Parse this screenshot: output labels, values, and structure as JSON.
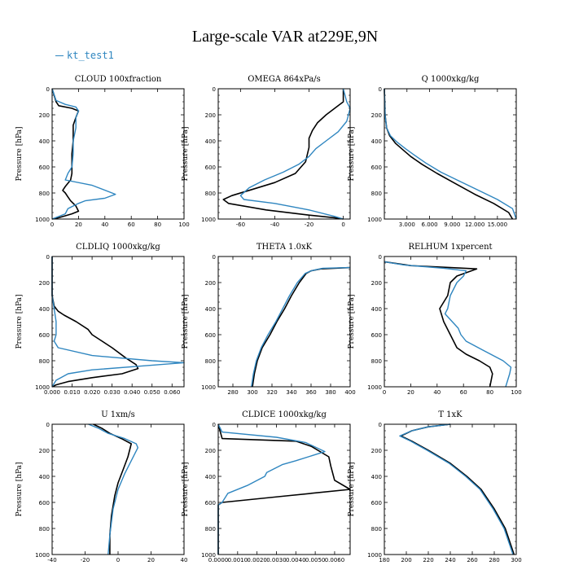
{
  "title": "Large-scale VAR at229E,9N",
  "legend": {
    "label": "kt_test1"
  },
  "colors": {
    "obs": "#000000",
    "kt_test1": "#2f86c0",
    "frame": "#000000"
  },
  "chart_data": [
    {
      "type": "line",
      "title": "CLOUD  100xfraction",
      "ylabel": "Pressure [hPa]",
      "xlim": [
        0,
        100
      ],
      "xticks": [
        0,
        20,
        40,
        60,
        80,
        100
      ],
      "xticklabels": [
        "0",
        "20",
        "40",
        "60",
        "80",
        "100"
      ],
      "ylim": [
        1000,
        0
      ],
      "yticks": [
        0,
        200,
        400,
        600,
        800,
        1000
      ],
      "legend": "top-left",
      "series": [
        {
          "name": "",
          "x": [
            0,
            3,
            5,
            15,
            20,
            18,
            16,
            16,
            15,
            15,
            15,
            15,
            14,
            10,
            8,
            10,
            12,
            14,
            18,
            20,
            15,
            5,
            0
          ],
          "y": [
            0,
            100,
            130,
            150,
            170,
            220,
            280,
            400,
            500,
            550,
            600,
            650,
            700,
            750,
            780,
            800,
            830,
            860,
            900,
            940,
            960,
            990,
            1000
          ]
        },
        {
          "name": "kt_test1",
          "x": [
            0,
            3,
            10,
            18,
            20,
            18,
            18,
            16,
            16,
            15,
            12,
            10,
            30,
            48,
            40,
            25,
            20,
            12,
            10,
            0
          ],
          "y": [
            0,
            90,
            120,
            140,
            170,
            220,
            300,
            400,
            500,
            600,
            650,
            700,
            740,
            810,
            840,
            860,
            880,
            920,
            960,
            1000
          ]
        }
      ]
    },
    {
      "type": "line",
      "title": "OMEGA  864xPa/s",
      "ylabel": "Pressure [hPa]",
      "xlim": [
        -73,
        4
      ],
      "xticks": [
        -60,
        -40,
        -20,
        0
      ],
      "xticklabels": [
        "-60",
        "-40",
        "-20",
        "0"
      ],
      "ylim": [
        1000,
        0
      ],
      "yticks": [
        0,
        200,
        400,
        600,
        800,
        1000
      ],
      "series": [
        {
          "name": "",
          "x": [
            0,
            0,
            -3,
            -10,
            -15,
            -18,
            -20,
            -20,
            -22,
            -28,
            -40,
            -55,
            -65,
            -70,
            -67,
            -45,
            -20,
            -5,
            0
          ],
          "y": [
            0,
            100,
            130,
            200,
            260,
            320,
            380,
            450,
            560,
            650,
            720,
            780,
            820,
            850,
            880,
            930,
            970,
            990,
            1000
          ]
        },
        {
          "name": "kt_test1",
          "x": [
            0,
            2,
            4,
            2,
            -3,
            -10,
            -16,
            -20,
            -26,
            -35,
            -46,
            -55,
            -60,
            -58,
            -40,
            -20,
            -5,
            0
          ],
          "y": [
            0,
            100,
            150,
            250,
            330,
            400,
            460,
            520,
            580,
            640,
            700,
            760,
            820,
            850,
            880,
            930,
            980,
            1000
          ]
        }
      ]
    },
    {
      "type": "line",
      "title": "Q  1000xkg/kg",
      "ylabel": "Pressure [hPa]",
      "xlim": [
        0,
        17500
      ],
      "xticks": [
        3000,
        6000,
        9000,
        12000,
        15000
      ],
      "xticklabels": [
        "3.000",
        "6.000",
        "9.000",
        "12.000",
        "15.000"
      ],
      "ylim": [
        1000,
        0
      ],
      "yticks": [
        0,
        200,
        400,
        600,
        800,
        1000
      ],
      "series": [
        {
          "name": "",
          "x": [
            0,
            100,
            300,
            700,
            1500,
            2500,
            3500,
            5000,
            7000,
            9500,
            12000,
            14500,
            16500,
            17000
          ],
          "y": [
            0,
            200,
            300,
            360,
            420,
            470,
            520,
            580,
            650,
            730,
            810,
            880,
            950,
            1000
          ]
        },
        {
          "name": "kt_test1",
          "x": [
            0,
            100,
            300,
            800,
            1700,
            2800,
            4000,
            5500,
            7500,
            10000,
            12500,
            15000,
            17000,
            17500
          ],
          "y": [
            0,
            200,
            300,
            360,
            410,
            460,
            510,
            570,
            640,
            710,
            780,
            850,
            920,
            1000
          ]
        }
      ]
    },
    {
      "type": "line",
      "title": "CLDLIQ  1000xkg/kg",
      "ylabel": "Pressure [hPa]",
      "xlim": [
        0,
        0.066
      ],
      "xticks": [
        0,
        0.01,
        0.02,
        0.03,
        0.04,
        0.05,
        0.06
      ],
      "xticklabels": [
        "0.000",
        "0.010",
        "0.020",
        "0.030",
        "0.040",
        "0.050",
        "0.060"
      ],
      "ylim": [
        1000,
        0
      ],
      "yticks": [
        0,
        200,
        400,
        600,
        800,
        1000
      ],
      "series": [
        {
          "name": "",
          "x": [
            0,
            0,
            0.001,
            0.003,
            0.006,
            0.012,
            0.018,
            0.02,
            0.025,
            0.03,
            0.037,
            0.042,
            0.043,
            0.035,
            0.02,
            0.008,
            0.002,
            0
          ],
          "y": [
            0,
            300,
            380,
            420,
            450,
            500,
            560,
            600,
            650,
            700,
            780,
            830,
            860,
            900,
            930,
            960,
            985,
            1000
          ]
        },
        {
          "name": "kt_test1",
          "x": [
            0,
            0,
            0.001,
            0.002,
            0.002,
            0.001,
            0.003,
            0.02,
            0.05,
            0.066,
            0.045,
            0.02,
            0.008,
            0.002,
            0
          ],
          "y": [
            0,
            300,
            400,
            500,
            600,
            650,
            700,
            760,
            800,
            815,
            840,
            870,
            900,
            950,
            1000
          ]
        }
      ]
    },
    {
      "type": "line",
      "title": "THETA  1.0xK",
      "ylabel": "Pressure [hPa]",
      "xlim": [
        265,
        400
      ],
      "xticks": [
        280,
        300,
        320,
        340,
        360,
        380,
        400
      ],
      "xticklabels": [
        "280",
        "300",
        "320",
        "340",
        "360",
        "380",
        "400"
      ],
      "ylim": [
        1000,
        0
      ],
      "yticks": [
        0,
        200,
        400,
        600,
        800,
        1000
      ],
      "series": [
        {
          "name": "",
          "x": [
            400,
            370,
            360,
            355,
            348,
            340,
            333,
            325,
            318,
            310,
            305,
            302,
            300
          ],
          "y": [
            85,
            95,
            110,
            130,
            200,
            300,
            400,
            500,
            600,
            700,
            800,
            900,
            1000
          ]
        },
        {
          "name": "kt_test1",
          "x": [
            400,
            372,
            360,
            354,
            346,
            338,
            331,
            324,
            316,
            309,
            304,
            301,
            299
          ],
          "y": [
            85,
            90,
            110,
            130,
            200,
            300,
            400,
            500,
            600,
            700,
            800,
            900,
            1000
          ]
        }
      ]
    },
    {
      "type": "line",
      "title": "RELHUM  1xpercent",
      "ylabel": "Pressure [hPa]",
      "xlim": [
        0,
        100
      ],
      "xticks": [
        0,
        20,
        40,
        60,
        80,
        100
      ],
      "xticklabels": [
        "0",
        "20",
        "40",
        "60",
        "80",
        "100"
      ],
      "ylim": [
        1000,
        0
      ],
      "yticks": [
        0,
        200,
        400,
        600,
        800,
        1000
      ],
      "series": [
        {
          "name": "",
          "x": [
            0,
            20,
            50,
            70,
            55,
            50,
            48,
            42,
            45,
            50,
            55,
            62,
            72,
            80,
            82,
            80
          ],
          "y": [
            40,
            70,
            85,
            95,
            150,
            200,
            300,
            400,
            500,
            600,
            700,
            750,
            800,
            850,
            900,
            1000
          ]
        },
        {
          "name": "kt_test1",
          "x": [
            0,
            15,
            45,
            62,
            60,
            55,
            50,
            48,
            46,
            56,
            58,
            62,
            75,
            90,
            96,
            95,
            92
          ],
          "y": [
            40,
            65,
            90,
            110,
            150,
            200,
            300,
            400,
            440,
            550,
            600,
            650,
            720,
            800,
            850,
            900,
            1000
          ]
        }
      ]
    },
    {
      "type": "line",
      "title": "U  1xm/s",
      "ylabel": "Pressure [hPa]",
      "xlim": [
        -40,
        40
      ],
      "xticks": [
        -40,
        -20,
        0,
        20,
        40
      ],
      "xticklabels": [
        "-40",
        "-20",
        "0",
        "20",
        "40"
      ],
      "ylim": [
        1000,
        0
      ],
      "yticks": [
        0,
        200,
        400,
        600,
        800,
        1000
      ],
      "series": [
        {
          "name": "",
          "x": [
            -15,
            -10,
            -5,
            2,
            8,
            6,
            3,
            0,
            -2,
            -4,
            -5,
            -5
          ],
          "y": [
            0,
            30,
            70,
            110,
            150,
            250,
            350,
            450,
            550,
            700,
            850,
            1000
          ]
        },
        {
          "name": "kt_test1",
          "x": [
            -18,
            -12,
            -6,
            4,
            11,
            12,
            8,
            4,
            0,
            -3,
            -5,
            -6
          ],
          "y": [
            0,
            30,
            70,
            110,
            150,
            180,
            280,
            380,
            500,
            650,
            850,
            1000
          ]
        }
      ]
    },
    {
      "type": "line",
      "title": "CLDICE  1000xkg/kg",
      "ylabel": "Pressure [hPa]",
      "xlim": [
        0,
        0.0068
      ],
      "xticks": [
        0,
        0.001,
        0.002,
        0.003,
        0.004,
        0.005,
        0.006
      ],
      "xticklabels": [
        "0.0000",
        "0.0010",
        "0.0020",
        "0.0030",
        "0.0040",
        "0.0050",
        "0.0060"
      ],
      "ylim": [
        1000,
        0
      ],
      "yticks": [
        0,
        200,
        400,
        600,
        800,
        1000
      ],
      "series": [
        {
          "name": "",
          "x": [
            0,
            0.0002,
            0.004,
            0.0048,
            0.0057,
            0.0058,
            0.006,
            0.0068,
            0.0035,
            0.0002,
            0,
            0
          ],
          "y": [
            0,
            110,
            130,
            170,
            250,
            320,
            430,
            500,
            550,
            600,
            620,
            1000
          ]
        },
        {
          "name": "kt_test1",
          "x": [
            0,
            0.0002,
            0.003,
            0.0045,
            0.0055,
            0.004,
            0.0033,
            0.0025,
            0.0024,
            0.0015,
            0.0005,
            0.0002,
            0,
            0
          ],
          "y": [
            0,
            60,
            100,
            140,
            210,
            280,
            310,
            370,
            400,
            470,
            530,
            600,
            620,
            1000
          ]
        }
      ]
    },
    {
      "type": "line",
      "title": "T  1xK",
      "ylabel": "Pressure [hPa]",
      "xlim": [
        180,
        300
      ],
      "xticks": [
        180,
        200,
        220,
        240,
        260,
        280,
        300
      ],
      "xticklabels": [
        "180",
        "200",
        "220",
        "240",
        "260",
        "280",
        "300"
      ],
      "ylim": [
        1000,
        0
      ],
      "yticks": [
        0,
        200,
        400,
        600,
        800,
        1000
      ],
      "series": [
        {
          "name": "",
          "x": [
            240,
            220,
            205,
            195,
            205,
            220,
            240,
            255,
            268,
            280,
            290,
            298
          ],
          "y": [
            0,
            20,
            50,
            90,
            130,
            200,
            300,
            400,
            500,
            650,
            800,
            1000
          ]
        },
        {
          "name": "kt_test1",
          "x": [
            240,
            220,
            205,
            194,
            204,
            219,
            239,
            254,
            267,
            279,
            289,
            297
          ],
          "y": [
            0,
            20,
            50,
            90,
            130,
            200,
            300,
            400,
            500,
            650,
            800,
            1000
          ]
        }
      ]
    }
  ]
}
